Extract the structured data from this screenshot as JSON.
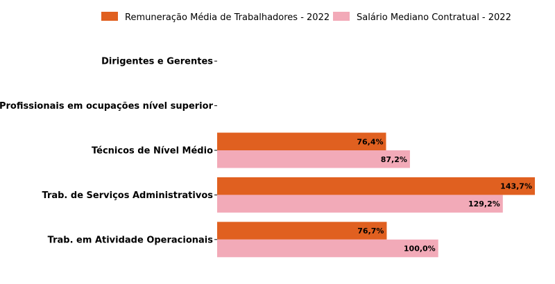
{
  "chart_data": {
    "type": "bar",
    "orientation": "horizontal",
    "categories": [
      "Dirigentes e Gerentes",
      "Profissionais em ocupações nível superior",
      "Técnicos de Nível Médio",
      "Trab. de Serviços Administrativos",
      "Trab. em Atividade Operacionais"
    ],
    "series": [
      {
        "name": "Remuneração Média de Trabalhadores - 2022",
        "color": "#e06020",
        "values": [
          null,
          null,
          76.4,
          143.7,
          76.7
        ],
        "labels": [
          "",
          "",
          "76,4%",
          "143,7%",
          "76,7%"
        ]
      },
      {
        "name": "Salário Mediano Contratual - 2022",
        "color": "#f2aab8",
        "values": [
          null,
          null,
          87.2,
          129.2,
          100.0
        ],
        "labels": [
          "",
          "",
          "87,2%",
          "129,2%",
          "100,0%"
        ]
      }
    ],
    "xlim": [
      0,
      143.7
    ],
    "grid": false,
    "legend_position": "top-center"
  }
}
